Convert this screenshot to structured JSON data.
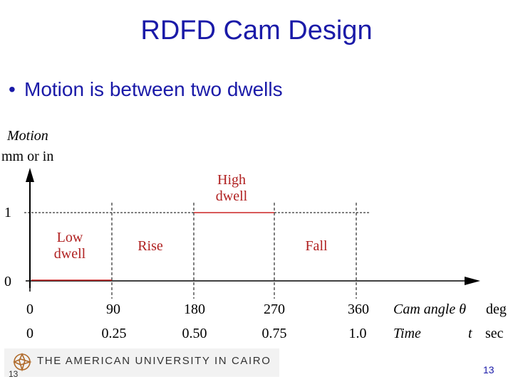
{
  "slide": {
    "title": "RDFD Cam Design",
    "bullet": "Motion is between two dwells",
    "page_number": "13",
    "page_number_small": "13"
  },
  "diagram": {
    "y_axis_label_1": "Motion",
    "y_axis_label_2": "mm or in",
    "y_tick_one": "1",
    "y_tick_zero": "0",
    "regions": {
      "low_dwell": [
        "Low",
        "dwell"
      ],
      "rise": "Rise",
      "high_dwell": [
        "High",
        "dwell"
      ],
      "fall": "Fall"
    },
    "angle_ticks": [
      "0",
      "90",
      "180",
      "270",
      "360"
    ],
    "time_ticks": [
      "0",
      "0.25",
      "0.50",
      "0.75",
      "1.0"
    ],
    "angle_axis_label": "Cam angle θ",
    "angle_unit": "deg",
    "time_axis_label": "Time",
    "time_symbol": "t",
    "time_unit": "sec",
    "colors": {
      "region_label": "#b02020",
      "motion_line": "#cc2222",
      "axis": "#000000"
    }
  },
  "footer": {
    "logo_text": "THE AMERICAN UNIVERSITY IN CAIRO"
  }
}
